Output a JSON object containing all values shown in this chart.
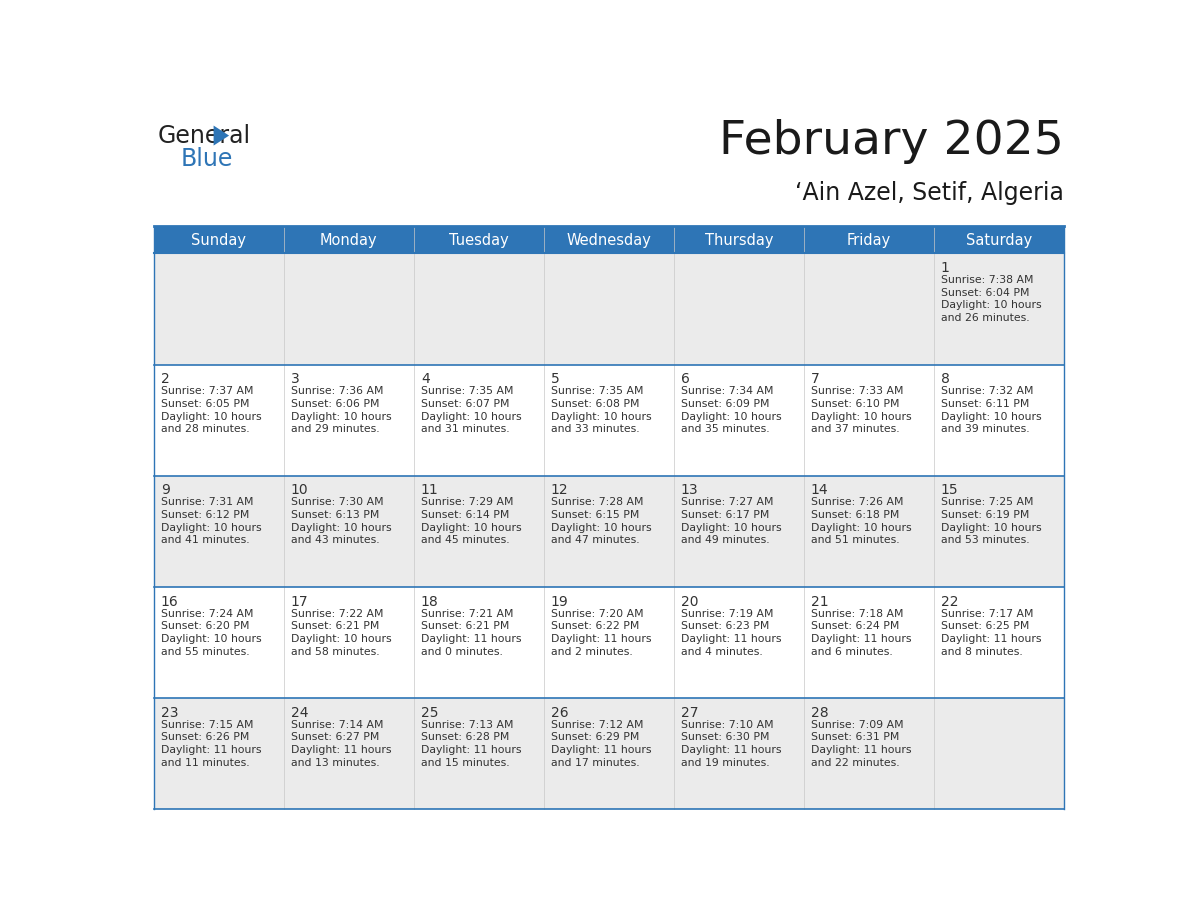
{
  "title": "February 2025",
  "subtitle": "‘Ain Azel, Setif, Algeria",
  "days_of_week": [
    "Sunday",
    "Monday",
    "Tuesday",
    "Wednesday",
    "Thursday",
    "Friday",
    "Saturday"
  ],
  "header_bg": "#2E75B6",
  "header_text": "#FFFFFF",
  "cell_bg_light": "#EBEBEB",
  "cell_bg_white": "#FFFFFF",
  "grid_line_color": "#2E75B6",
  "text_color": "#333333",
  "title_color": "#1a1a1a",
  "calendar_data": [
    [
      null,
      null,
      null,
      null,
      null,
      null,
      {
        "day": 1,
        "sunrise": "7:38 AM",
        "sunset": "6:04 PM",
        "daylight_line1": "Daylight: 10 hours",
        "daylight_line2": "and 26 minutes."
      }
    ],
    [
      {
        "day": 2,
        "sunrise": "7:37 AM",
        "sunset": "6:05 PM",
        "daylight_line1": "Daylight: 10 hours",
        "daylight_line2": "and 28 minutes."
      },
      {
        "day": 3,
        "sunrise": "7:36 AM",
        "sunset": "6:06 PM",
        "daylight_line1": "Daylight: 10 hours",
        "daylight_line2": "and 29 minutes."
      },
      {
        "day": 4,
        "sunrise": "7:35 AM",
        "sunset": "6:07 PM",
        "daylight_line1": "Daylight: 10 hours",
        "daylight_line2": "and 31 minutes."
      },
      {
        "day": 5,
        "sunrise": "7:35 AM",
        "sunset": "6:08 PM",
        "daylight_line1": "Daylight: 10 hours",
        "daylight_line2": "and 33 minutes."
      },
      {
        "day": 6,
        "sunrise": "7:34 AM",
        "sunset": "6:09 PM",
        "daylight_line1": "Daylight: 10 hours",
        "daylight_line2": "and 35 minutes."
      },
      {
        "day": 7,
        "sunrise": "7:33 AM",
        "sunset": "6:10 PM",
        "daylight_line1": "Daylight: 10 hours",
        "daylight_line2": "and 37 minutes."
      },
      {
        "day": 8,
        "sunrise": "7:32 AM",
        "sunset": "6:11 PM",
        "daylight_line1": "Daylight: 10 hours",
        "daylight_line2": "and 39 minutes."
      }
    ],
    [
      {
        "day": 9,
        "sunrise": "7:31 AM",
        "sunset": "6:12 PM",
        "daylight_line1": "Daylight: 10 hours",
        "daylight_line2": "and 41 minutes."
      },
      {
        "day": 10,
        "sunrise": "7:30 AM",
        "sunset": "6:13 PM",
        "daylight_line1": "Daylight: 10 hours",
        "daylight_line2": "and 43 minutes."
      },
      {
        "day": 11,
        "sunrise": "7:29 AM",
        "sunset": "6:14 PM",
        "daylight_line1": "Daylight: 10 hours",
        "daylight_line2": "and 45 minutes."
      },
      {
        "day": 12,
        "sunrise": "7:28 AM",
        "sunset": "6:15 PM",
        "daylight_line1": "Daylight: 10 hours",
        "daylight_line2": "and 47 minutes."
      },
      {
        "day": 13,
        "sunrise": "7:27 AM",
        "sunset": "6:17 PM",
        "daylight_line1": "Daylight: 10 hours",
        "daylight_line2": "and 49 minutes."
      },
      {
        "day": 14,
        "sunrise": "7:26 AM",
        "sunset": "6:18 PM",
        "daylight_line1": "Daylight: 10 hours",
        "daylight_line2": "and 51 minutes."
      },
      {
        "day": 15,
        "sunrise": "7:25 AM",
        "sunset": "6:19 PM",
        "daylight_line1": "Daylight: 10 hours",
        "daylight_line2": "and 53 minutes."
      }
    ],
    [
      {
        "day": 16,
        "sunrise": "7:24 AM",
        "sunset": "6:20 PM",
        "daylight_line1": "Daylight: 10 hours",
        "daylight_line2": "and 55 minutes."
      },
      {
        "day": 17,
        "sunrise": "7:22 AM",
        "sunset": "6:21 PM",
        "daylight_line1": "Daylight: 10 hours",
        "daylight_line2": "and 58 minutes."
      },
      {
        "day": 18,
        "sunrise": "7:21 AM",
        "sunset": "6:21 PM",
        "daylight_line1": "Daylight: 11 hours",
        "daylight_line2": "and 0 minutes."
      },
      {
        "day": 19,
        "sunrise": "7:20 AM",
        "sunset": "6:22 PM",
        "daylight_line1": "Daylight: 11 hours",
        "daylight_line2": "and 2 minutes."
      },
      {
        "day": 20,
        "sunrise": "7:19 AM",
        "sunset": "6:23 PM",
        "daylight_line1": "Daylight: 11 hours",
        "daylight_line2": "and 4 minutes."
      },
      {
        "day": 21,
        "sunrise": "7:18 AM",
        "sunset": "6:24 PM",
        "daylight_line1": "Daylight: 11 hours",
        "daylight_line2": "and 6 minutes."
      },
      {
        "day": 22,
        "sunrise": "7:17 AM",
        "sunset": "6:25 PM",
        "daylight_line1": "Daylight: 11 hours",
        "daylight_line2": "and 8 minutes."
      }
    ],
    [
      {
        "day": 23,
        "sunrise": "7:15 AM",
        "sunset": "6:26 PM",
        "daylight_line1": "Daylight: 11 hours",
        "daylight_line2": "and 11 minutes."
      },
      {
        "day": 24,
        "sunrise": "7:14 AM",
        "sunset": "6:27 PM",
        "daylight_line1": "Daylight: 11 hours",
        "daylight_line2": "and 13 minutes."
      },
      {
        "day": 25,
        "sunrise": "7:13 AM",
        "sunset": "6:28 PM",
        "daylight_line1": "Daylight: 11 hours",
        "daylight_line2": "and 15 minutes."
      },
      {
        "day": 26,
        "sunrise": "7:12 AM",
        "sunset": "6:29 PM",
        "daylight_line1": "Daylight: 11 hours",
        "daylight_line2": "and 17 minutes."
      },
      {
        "day": 27,
        "sunrise": "7:10 AM",
        "sunset": "6:30 PM",
        "daylight_line1": "Daylight: 11 hours",
        "daylight_line2": "and 19 minutes."
      },
      {
        "day": 28,
        "sunrise": "7:09 AM",
        "sunset": "6:31 PM",
        "daylight_line1": "Daylight: 11 hours",
        "daylight_line2": "and 22 minutes."
      },
      null
    ]
  ],
  "num_cols": 7,
  "num_rows": 5
}
